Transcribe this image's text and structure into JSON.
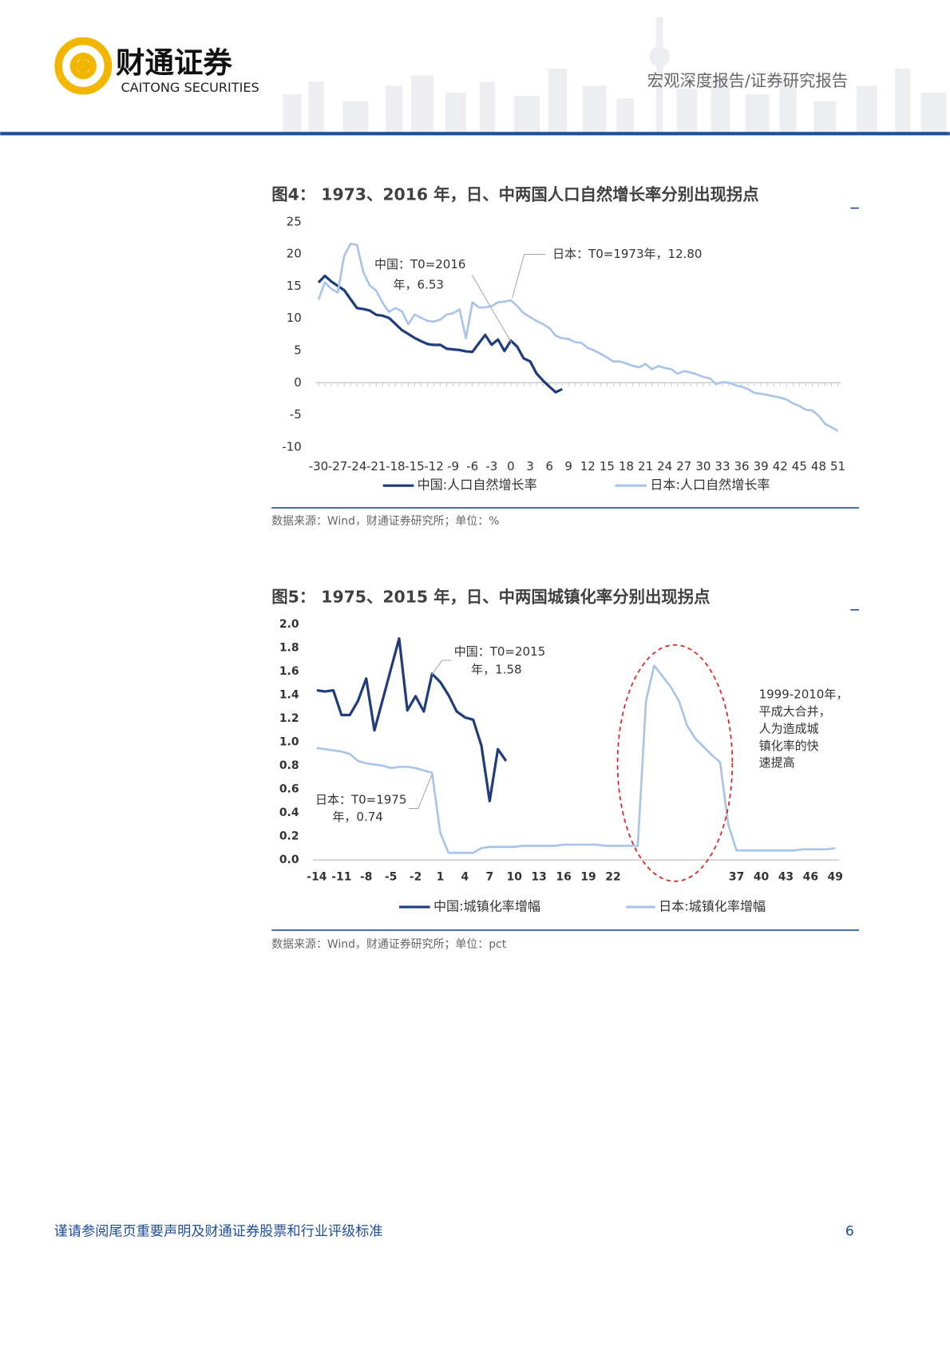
{
  "header": {
    "brand": "财通证券",
    "brand_en": "CAITONG SECURITIES",
    "report_type": "宏观深度报告/证券研究报告"
  },
  "chart_data": [
    {
      "type": "line",
      "title": "图4：  1973、2016 年，日、中两国人口自然增长率分别出现拐点",
      "x": [
        -30,
        -29,
        -28,
        -27,
        -26,
        -25,
        -24,
        -23,
        -22,
        -21,
        -20,
        -19,
        -18,
        -17,
        -16,
        -15,
        -14,
        -13,
        -12,
        -11,
        -10,
        -9,
        -8,
        -7,
        -6,
        -5,
        -4,
        -3,
        -2,
        -1,
        0,
        1,
        2,
        3,
        4,
        5,
        6,
        7,
        8,
        9,
        10,
        11,
        12,
        13,
        14,
        15,
        16,
        17,
        18,
        19,
        20,
        21,
        22,
        23,
        24,
        25,
        26,
        27,
        28,
        29,
        30,
        31,
        32,
        33,
        34,
        35,
        36,
        37,
        38,
        39,
        40,
        41,
        42,
        43,
        44,
        45,
        46,
        47,
        48,
        49,
        50,
        51
      ],
      "series": [
        {
          "name": "中国:人口自然增长率",
          "color": "#1f3d7a",
          "values": [
            15.57,
            16.61,
            15.73,
            15.04,
            14.39,
            12.98,
            11.6,
            11.45,
            11.21,
            10.55,
            10.42,
            10.06,
            9.14,
            8.18,
            7.58,
            6.95,
            6.45,
            6.01,
            5.87,
            5.89,
            5.28,
            5.17,
            5.08,
            4.87,
            4.79,
            6.13,
            7.43,
            5.9,
            6.71,
            4.93,
            6.53,
            5.58,
            3.78,
            3.32,
            1.45,
            0.34,
            -0.6,
            -1.48,
            -0.99,
            null,
            null,
            null,
            null,
            null,
            null,
            null,
            null,
            null,
            null,
            null,
            null,
            null,
            null,
            null,
            null,
            null,
            null,
            null,
            null,
            null,
            null,
            null,
            null,
            null,
            null,
            null,
            null,
            null,
            null,
            null,
            null,
            null,
            null,
            null,
            null,
            null,
            null,
            null,
            null,
            null,
            null,
            null
          ]
        },
        {
          "name": "日本:人口自然增长率",
          "color": "#a9c4e8",
          "values": [
            12.9,
            15.6,
            14.6,
            14.0,
            19.7,
            21.6,
            21.4,
            17.2,
            15.1,
            14.3,
            12.4,
            11.0,
            11.6,
            11.1,
            9.1,
            10.6,
            10.1,
            9.6,
            9.5,
            9.8,
            10.6,
            10.8,
            11.4,
            6.9,
            12.5,
            11.7,
            11.7,
            11.9,
            12.5,
            12.6,
            12.8,
            11.9,
            10.8,
            10.2,
            9.6,
            9.1,
            8.5,
            7.3,
            6.9,
            6.8,
            6.3,
            6.2,
            5.4,
            5.0,
            4.5,
            3.9,
            3.3,
            3.3,
            3.0,
            2.6,
            2.4,
            2.9,
            2.1,
            2.6,
            2.3,
            2.1,
            1.4,
            1.8,
            1.6,
            1.3,
            0.9,
            0.7,
            -0.2,
            0.1,
            0.0,
            -0.4,
            -0.6,
            -1.0,
            -1.6,
            -1.7,
            -1.9,
            -2.1,
            -2.3,
            -2.6,
            -3.2,
            -3.6,
            -4.2,
            -4.3,
            -5.1,
            -6.4,
            -6.9,
            -7.5
          ]
        }
      ],
      "xlim": [
        -30.5,
        51.5
      ],
      "xticks": [
        -30,
        -27,
        -24,
        -21,
        -18,
        -15,
        -12,
        -9,
        -6,
        -3,
        0,
        3,
        6,
        9,
        12,
        15,
        18,
        21,
        24,
        27,
        30,
        33,
        36,
        39,
        42,
        45,
        48,
        51
      ],
      "ylim": [
        -10,
        25
      ],
      "yticks": [
        -10,
        -5,
        0,
        5,
        10,
        15,
        20,
        25
      ],
      "grid": false,
      "annotations": [
        {
          "text": [
            "中国：T0=2016",
            "年，6.53"
          ]
        },
        {
          "text": [
            "日本：T0=1973年，12.80"
          ]
        }
      ],
      "source": "数据来源：Wind，财通证券研究所；单位：%"
    },
    {
      "type": "line",
      "title": "图5：  1975、2015 年，日、中两国城镇化率分别出现拐点",
      "x": [
        -14,
        -13,
        -12,
        -11,
        -10,
        -9,
        -8,
        -7,
        -6,
        -5,
        -4,
        -3,
        -2,
        -1,
        0,
        1,
        2,
        3,
        4,
        5,
        6,
        7,
        8,
        9,
        10,
        11,
        12,
        13,
        14,
        15,
        16,
        17,
        18,
        19,
        20,
        21,
        22,
        23,
        24,
        25,
        26,
        27,
        28,
        29,
        30,
        31,
        32,
        33,
        34,
        35,
        36,
        37,
        38,
        39,
        40,
        41,
        42,
        43,
        44,
        45,
        46,
        47,
        48,
        49
      ],
      "series": [
        {
          "name": "中国:城镇化率增幅",
          "color": "#1f3d7a",
          "values": [
            1.44,
            1.43,
            1.44,
            1.23,
            1.23,
            1.35,
            1.54,
            1.1,
            1.36,
            1.62,
            1.88,
            1.27,
            1.39,
            1.26,
            1.58,
            1.51,
            1.4,
            1.26,
            1.21,
            1.19,
            0.97,
            0.5,
            0.94,
            0.84,
            null,
            null,
            null,
            null,
            null,
            null,
            null,
            null,
            null,
            null,
            null,
            null,
            null,
            null,
            null,
            null,
            null,
            null,
            null,
            null,
            null,
            null,
            null,
            null,
            null,
            null,
            null,
            null,
            null,
            null,
            null,
            null,
            null,
            null,
            null,
            null,
            null,
            null,
            null,
            null
          ]
        },
        {
          "name": "日本:城镇化率增幅",
          "color": "#a9c4e8",
          "values": [
            0.95,
            0.94,
            0.93,
            0.92,
            0.9,
            0.84,
            0.82,
            0.81,
            0.8,
            0.78,
            0.79,
            0.79,
            0.78,
            0.76,
            0.74,
            0.23,
            0.06,
            0.06,
            0.06,
            0.06,
            0.1,
            0.11,
            0.11,
            0.11,
            0.11,
            0.12,
            0.12,
            0.12,
            0.12,
            0.12,
            0.13,
            0.13,
            0.13,
            0.13,
            0.13,
            0.12,
            0.12,
            0.12,
            0.12,
            0.12,
            1.35,
            1.65,
            1.56,
            1.47,
            1.35,
            1.14,
            1.03,
            0.96,
            0.89,
            0.83,
            0.3,
            0.08,
            0.08,
            0.08,
            0.08,
            0.08,
            0.08,
            0.08,
            0.08,
            0.09,
            0.09,
            0.09,
            0.09,
            0.1
          ]
        }
      ],
      "xlim": [
        -14.5,
        49.5
      ],
      "xticks": [
        -14,
        -11,
        -8,
        -5,
        -2,
        1,
        4,
        7,
        10,
        13,
        16,
        19,
        22,
        37,
        40,
        43,
        46,
        49
      ],
      "ylim": [
        0,
        2.0
      ],
      "yticks": [
        {
          "value": 0,
          "label": "0.0"
        },
        0.2,
        0.4,
        0.6,
        0.8,
        {
          "value": 1,
          "label": "1.0"
        },
        1.2,
        1.4,
        1.6,
        1.8,
        {
          "value": 2,
          "label": "2.0"
        }
      ],
      "grid": false,
      "annotations": [
        {
          "text": [
            "中国：T0=2015",
            "年，1.58"
          ]
        },
        {
          "text": [
            "日本：T0=1975",
            "年，0.74"
          ]
        },
        {
          "text": [
            "1999-2010年，",
            "平成大合并，",
            "人为造成城",
            "镇化率的快",
            "速提高"
          ]
        }
      ],
      "source": "数据来源：Wind，财通证券研究所；单位：pct"
    }
  ],
  "footer": {
    "disclaimer": "谨请参阅尾页重要声明及财通证券股票和行业评级标准",
    "page": "6"
  }
}
